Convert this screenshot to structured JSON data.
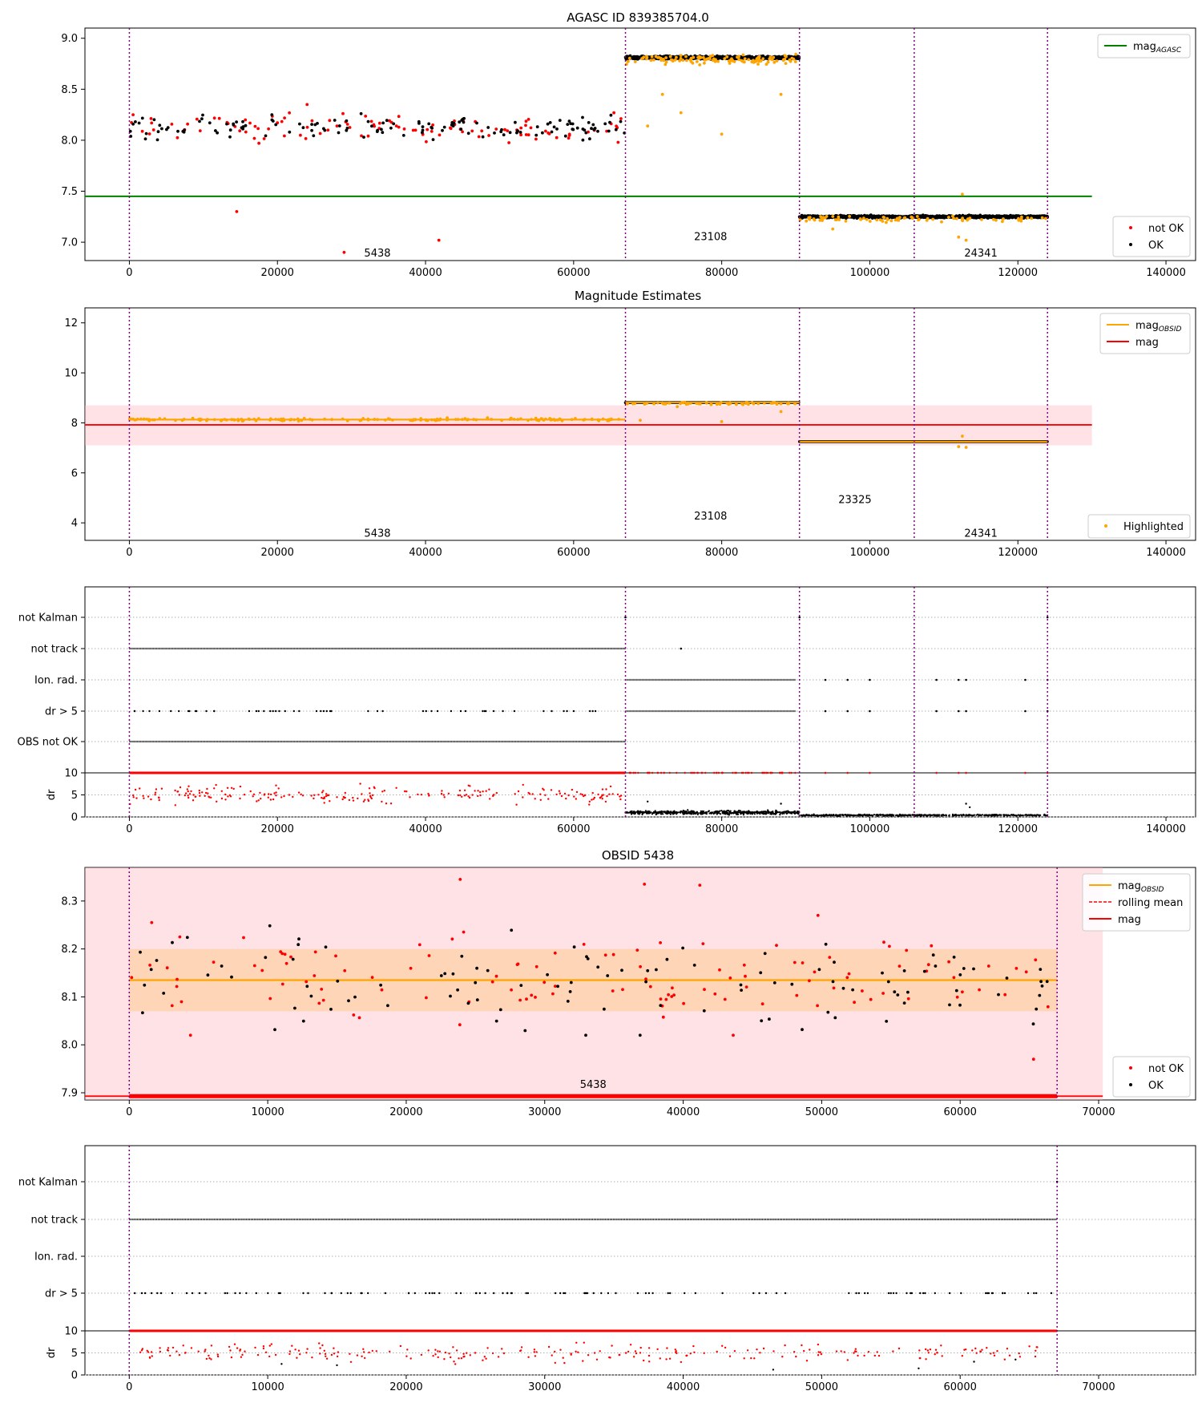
{
  "figure": {
    "panel1_title": "AGASC ID 839385704.0",
    "panel2_title": "Magnitude Estimates",
    "panel4_title": "OBSID 5438"
  },
  "chart_data": [
    {
      "type": "scatter",
      "title": "AGASC ID 839385704.0",
      "xlim": [
        -6000,
        144000
      ],
      "ylim": [
        6.82,
        9.1
      ],
      "xticks": [
        0,
        20000,
        40000,
        60000,
        80000,
        100000,
        120000,
        140000
      ],
      "yticks": [
        7.0,
        7.5,
        8.0,
        8.5,
        9.0
      ],
      "ytick_labels": [
        "7.0",
        "7.5",
        "8.0",
        "8.5",
        "9.0"
      ],
      "obsid_boundaries": [
        0,
        67000,
        90500,
        106000,
        124000
      ],
      "obsid_labels": [
        {
          "text": "5438",
          "x": 33500,
          "y": 6.9
        },
        {
          "text": "23108",
          "x": 78500,
          "y": 7.06
        },
        {
          "text": "24341",
          "x": 115000,
          "y": 6.9
        }
      ],
      "mag_agasc": 7.45,
      "mag_agasc_xrange": [
        -6000,
        130000
      ],
      "series": [
        {
          "name": "not OK",
          "color": "#ff0000",
          "segments": [
            {
              "x0": 0,
              "x1": 67000,
              "center": 8.12,
              "spread": 0.14,
              "count": 110
            }
          ],
          "outliers": [
            [
              14500,
              7.3
            ],
            [
              29000,
              6.9
            ],
            [
              41800,
              7.02
            ],
            [
              66000,
              7.98
            ],
            [
              24000,
              8.35
            ],
            [
              500,
              8.25
            ]
          ]
        },
        {
          "name": "OK",
          "color": "#000000",
          "segments": [
            {
              "x0": 0,
              "x1": 67000,
              "center": 8.13,
              "spread": 0.12,
              "count": 140
            },
            {
              "x0": 67000,
              "x1": 90500,
              "center": 8.81,
              "spread": 0.015,
              "count": 700
            },
            {
              "x0": 90500,
              "x1": 124000,
              "center": 7.25,
              "spread": 0.012,
              "count": 900
            }
          ]
        },
        {
          "name": "Highlighted",
          "color": "#ffa500",
          "segments": [
            {
              "x0": 67000,
              "x1": 90500,
              "center": 8.79,
              "spread": 0.05,
              "count": 120
            },
            {
              "x0": 90500,
              "x1": 124000,
              "center": 7.23,
              "spread": 0.03,
              "count": 80
            }
          ],
          "outliers": [
            [
              72000,
              8.45
            ],
            [
              74500,
              8.27
            ],
            [
              80000,
              8.06
            ],
            [
              88000,
              8.45
            ],
            [
              70000,
              8.14
            ],
            [
              95000,
              7.13
            ],
            [
              112500,
              7.47
            ],
            [
              112000,
              7.05
            ],
            [
              113000,
              7.02
            ]
          ]
        }
      ],
      "legend": [
        {
          "label": "mag",
          "sub": "AGASC",
          "kind": "line",
          "color": "#008000",
          "position": "top-right"
        },
        {
          "label": "not OK",
          "kind": "marker",
          "color": "#ff0000",
          "position": "bottom-right"
        },
        {
          "label": "OK",
          "kind": "marker",
          "color": "#000000",
          "position": "bottom-right"
        }
      ]
    },
    {
      "type": "scatter",
      "title": "Magnitude Estimates",
      "xlim": [
        -6000,
        144000
      ],
      "ylim": [
        3.3,
        12.6
      ],
      "xticks": [
        0,
        20000,
        40000,
        60000,
        80000,
        100000,
        120000,
        140000
      ],
      "yticks": [
        4,
        6,
        8,
        10,
        12
      ],
      "obsid_boundaries": [
        0,
        67000,
        90500,
        106000,
        124000
      ],
      "obsid_labels": [
        {
          "text": "5438",
          "x": 33500,
          "y": 3.6
        },
        {
          "text": "23108",
          "x": 78500,
          "y": 4.3
        },
        {
          "text": "23325",
          "x": 98000,
          "y": 4.95
        },
        {
          "text": "24341",
          "x": 115000,
          "y": 3.6
        }
      ],
      "mag": 7.92,
      "mag_band": [
        7.1,
        8.7
      ],
      "mag_xrange": [
        -6000,
        130000
      ],
      "mag_obsid": [
        {
          "x0": 0,
          "x1": 67000,
          "value": 8.13
        },
        {
          "x0": 67000,
          "x1": 90500,
          "value": 8.81
        },
        {
          "x0": 90500,
          "x1": 124000,
          "value": 7.25
        }
      ],
      "legend": [
        {
          "label": "mag",
          "sub": "OBSID",
          "kind": "line",
          "color": "#ffa500",
          "position": "top-right"
        },
        {
          "label": "mag",
          "kind": "line",
          "color": "#ff0000",
          "position": "top-right"
        },
        {
          "label": "Highlighted",
          "kind": "marker",
          "color": "#ffa500",
          "position": "bottom-right"
        }
      ]
    },
    {
      "type": "scatter",
      "xlim": [
        -6000,
        144000
      ],
      "xticks": [
        0,
        20000,
        40000,
        60000,
        80000,
        100000,
        120000,
        140000
      ],
      "flag_rows": [
        "not Kalman",
        "not track",
        "Ion. rad.",
        "dr > 5",
        "OBS not OK"
      ],
      "obsid_boundaries": [
        0,
        67000,
        90500,
        106000,
        124000
      ],
      "flags": [
        {
          "row": "not track",
          "ranges": [
            [
              0,
              67000
            ]
          ],
          "points": [
            74500
          ]
        },
        {
          "row": "OBS not OK",
          "ranges": [
            [
              0,
              67000
            ]
          ]
        },
        {
          "row": "Ion. rad.",
          "ranges": [
            [
              67000,
              90000
            ]
          ],
          "points": [
            94000,
            97000,
            100000,
            109000,
            112000,
            113000,
            121000,
            124000
          ]
        },
        {
          "row": "dr > 5",
          "sparse": [
            0,
            67000,
            55
          ],
          "ranges": [
            [
              67000,
              90000
            ]
          ],
          "points": [
            94000,
            97000,
            100000,
            109000,
            112000,
            113000,
            121000,
            124000
          ]
        },
        {
          "row": "not Kalman",
          "points": [
            67000,
            90500,
            124000
          ]
        }
      ],
      "dr_ylim": [
        0,
        10
      ],
      "dr_yticks": [
        0,
        5,
        10
      ],
      "dr_ylabel": "dr"
    },
    {
      "type": "scatter",
      "title": "OBSID 5438",
      "xlim": [
        -3200,
        77000
      ],
      "ylim": [
        7.885,
        8.37
      ],
      "xticks": [
        0,
        10000,
        20000,
        30000,
        40000,
        50000,
        60000,
        70000
      ],
      "yticks": [
        7.9,
        8.0,
        8.1,
        8.2,
        8.3
      ],
      "ytick_labels": [
        "7.9",
        "8.0",
        "8.1",
        "8.2",
        "8.3"
      ],
      "obsid_boundaries": [
        0,
        67000
      ],
      "obsid_labels": [
        {
          "text": "5438",
          "x": 33500,
          "y": 7.9
        }
      ],
      "mag": 7.893,
      "mag_obsid": 8.135,
      "mag_obsid_band": [
        8.07,
        8.2
      ],
      "rolling_mean": 7.893,
      "pink_band_xrange": [
        -3200,
        70300
      ],
      "series": [
        {
          "name": "not OK",
          "color": "#ff0000",
          "segments": [
            {
              "x0": 0,
              "x1": 67000,
              "center": 8.13,
              "spread": 0.11,
              "count": 120
            }
          ],
          "outliers": [
            [
              23900,
              8.345
            ],
            [
              37200,
              8.335
            ],
            [
              41200,
              8.333
            ],
            [
              65300,
              7.97
            ]
          ]
        },
        {
          "name": "OK",
          "color": "#000000",
          "segments": [
            {
              "x0": 0,
              "x1": 67000,
              "center": 8.13,
              "spread": 0.11,
              "count": 110
            }
          ]
        }
      ],
      "legend": [
        {
          "label": "mag",
          "sub": "OBSID",
          "kind": "line",
          "color": "#ffa500",
          "position": "top-right"
        },
        {
          "label": "rolling mean",
          "kind": "dash",
          "color": "#ff0000",
          "position": "top-right"
        },
        {
          "label": "mag",
          "kind": "line",
          "color": "#ff0000",
          "position": "top-right"
        },
        {
          "label": "not OK",
          "kind": "marker",
          "color": "#ff0000",
          "position": "bottom-right"
        },
        {
          "label": "OK",
          "kind": "marker",
          "color": "#000000",
          "position": "bottom-right"
        }
      ]
    },
    {
      "type": "scatter",
      "xlim": [
        -3200,
        77000
      ],
      "xticks": [
        0,
        10000,
        20000,
        30000,
        40000,
        50000,
        60000,
        70000
      ],
      "flag_rows": [
        "not Kalman",
        "not track",
        "Ion. rad.",
        "dr > 5"
      ],
      "obsid_boundaries": [
        0,
        67000
      ],
      "flags": [
        {
          "row": "not track",
          "ranges": [
            [
              0,
              67000
            ]
          ]
        },
        {
          "row": "dr > 5",
          "sparse": [
            0,
            67000,
            110
          ]
        },
        {
          "row": "not Kalman",
          "points": [
            67000
          ]
        }
      ],
      "dr_ylim": [
        0,
        10
      ],
      "dr_yticks": [
        0,
        5,
        10
      ],
      "dr_ylabel": "dr"
    }
  ]
}
